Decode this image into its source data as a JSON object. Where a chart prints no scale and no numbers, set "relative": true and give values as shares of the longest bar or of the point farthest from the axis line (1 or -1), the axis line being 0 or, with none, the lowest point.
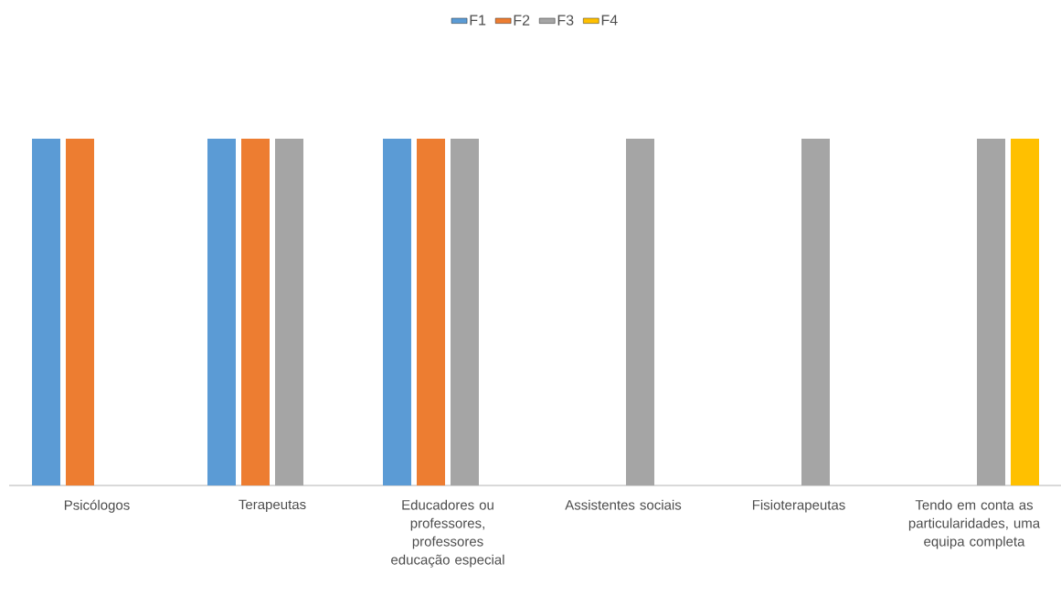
{
  "chart_data": {
    "type": "bar",
    "relative": true,
    "categories": [
      "Psicólogos",
      "Terapeutas",
      "Educadores ou professores, professores educação especial",
      "Assistentes sociais",
      "Fisioterapeutas",
      "Tendo em conta as particularidades, uma equipa completa"
    ],
    "series": [
      {
        "name": "F1",
        "color": "#5b9bd5",
        "values": [
          1,
          1,
          1,
          null,
          null,
          null
        ]
      },
      {
        "name": "F2",
        "color": "#ed7d31",
        "values": [
          1,
          1,
          1,
          null,
          null,
          null
        ]
      },
      {
        "name": "F3",
        "color": "#a5a5a5",
        "values": [
          null,
          1,
          1,
          1,
          1,
          1
        ]
      },
      {
        "name": "F4",
        "color": "#ffc000",
        "values": [
          null,
          null,
          null,
          null,
          null,
          1
        ]
      }
    ],
    "legend": "top",
    "grid": false
  }
}
